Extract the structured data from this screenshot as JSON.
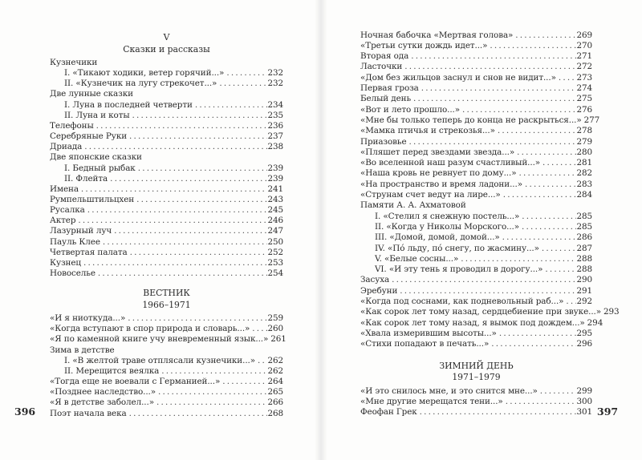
{
  "left_page": {
    "page_number": "396",
    "blocks": [
      {
        "type": "section",
        "lines": [
          "V",
          "Сказки и рассказы"
        ]
      },
      {
        "type": "entries",
        "items": [
          {
            "title": "Кузнечики",
            "page": "",
            "level": 0
          },
          {
            "title": "I. «Тикают ходики, ветер горячий...»",
            "page": "232",
            "level": 1
          },
          {
            "title": "II. «Кузнечик на лугу стрекочет...»",
            "page": "232",
            "level": 1
          },
          {
            "title": "Две лунные сказки",
            "page": "",
            "level": 0
          },
          {
            "title": "I. Луна в последней четверти",
            "page": "234",
            "level": 1
          },
          {
            "title": "II. Луна и коты",
            "page": "235",
            "level": 1
          },
          {
            "title": "Телефоны",
            "page": "236",
            "level": 0
          },
          {
            "title": "Серебряные Руки",
            "page": "237",
            "level": 0
          },
          {
            "title": "Дриада",
            "page": "238",
            "level": 0
          },
          {
            "title": "Две японские сказки",
            "page": "",
            "level": 0
          },
          {
            "title": "I. Бедный рыбак",
            "page": "239",
            "level": 1
          },
          {
            "title": "II. Флейта",
            "page": "239",
            "level": 1
          },
          {
            "title": "Имена",
            "page": "241",
            "level": 0
          },
          {
            "title": "Румпельштильцхен",
            "page": "243",
            "level": 0
          },
          {
            "title": "Русалка",
            "page": "245",
            "level": 0
          },
          {
            "title": "Актер",
            "page": "246",
            "level": 0
          },
          {
            "title": "Лазурный луч",
            "page": "247",
            "level": 0
          },
          {
            "title": "Пауль Клее",
            "page": "250",
            "level": 0
          },
          {
            "title": "Четвертая палата",
            "page": "252",
            "level": 0
          },
          {
            "title": "Кузнец",
            "page": "253",
            "level": 0
          },
          {
            "title": "Новоселье",
            "page": "254",
            "level": 0
          }
        ]
      },
      {
        "type": "section",
        "lines": [
          "ВЕСТНИК",
          "1966–1971"
        ]
      },
      {
        "type": "entries",
        "items": [
          {
            "title": "«И я ниоткуда...»",
            "page": "259",
            "level": 0
          },
          {
            "title": "«Когда вступают в спор природа и словарь...»",
            "page": "260",
            "level": 0
          },
          {
            "title": "«Я по каменной книге учу вневременный язык...»",
            "page": "261",
            "level": 0
          },
          {
            "title": "Зима в детстве",
            "page": "",
            "level": 0
          },
          {
            "title": "I. «В желтой траве отплясали кузнечики...»",
            "page": "262",
            "level": 1
          },
          {
            "title": "II. Мерещится веялка",
            "page": "262",
            "level": 1
          },
          {
            "title": "«Тогда еще не воевали с Германией...»",
            "page": "264",
            "level": 0
          },
          {
            "title": "«Позднее наследство...»",
            "page": "265",
            "level": 0
          },
          {
            "title": "«Я в детстве заболел...»",
            "page": "266",
            "level": 0
          },
          {
            "title": "Поэт начала века",
            "page": "268",
            "level": 0
          }
        ]
      }
    ]
  },
  "right_page": {
    "page_number": "397",
    "blocks": [
      {
        "type": "entries",
        "items": [
          {
            "title": "Ночная бабочка «Мертвая голова»",
            "page": "269",
            "level": 0
          },
          {
            "title": "«Третьи сутки дождь идет...»",
            "page": "270",
            "level": 0
          },
          {
            "title": "Вторая ода",
            "page": "271",
            "level": 0
          },
          {
            "title": "Ласточки",
            "page": "272",
            "level": 0
          },
          {
            "title": "«Дом без жильцов заснул и снов не видит...»",
            "page": "273",
            "level": 0
          },
          {
            "title": "Первая гроза",
            "page": "274",
            "level": 0
          },
          {
            "title": "Белый день",
            "page": "275",
            "level": 0
          },
          {
            "title": "«Вот и лето прошло...»",
            "page": "276",
            "level": 0
          },
          {
            "title": "«Мне бы только теперь до конца не раскрыться...»",
            "page": "277",
            "level": 0
          },
          {
            "title": "«Мамка птичья и стрекозья...»",
            "page": "278",
            "level": 0
          },
          {
            "title": "Приазовье",
            "page": "279",
            "level": 0
          },
          {
            "title": "«Пляшет перед звездами звезда...»",
            "page": "280",
            "level": 0
          },
          {
            "title": "«Во вселенной наш разум счастливый...»",
            "page": "281",
            "level": 0
          },
          {
            "title": "«Наша кровь не ревнует по дому...»",
            "page": "282",
            "level": 0
          },
          {
            "title": "«На пространство и время ладони...»",
            "page": "283",
            "level": 0
          },
          {
            "title": "«Струнам счет ведут на лире...»",
            "page": "284",
            "level": 0
          },
          {
            "title": "Памяти А. А. Ахматовой",
            "page": "",
            "level": 0
          },
          {
            "title": "I. «Стелил я снежную постель...»",
            "page": "285",
            "level": 1
          },
          {
            "title": "II. «Когда у Николы Морского...»",
            "page": "285",
            "level": 1
          },
          {
            "title": "III. «Домой, домой, домой...»",
            "page": "286",
            "level": 1
          },
          {
            "title": "IV. «Пó льду, пó снегу, по жасмину...»",
            "page": "287",
            "level": 1
          },
          {
            "title": "V. «Белые сосны...»",
            "page": "288",
            "level": 1
          },
          {
            "title": "VI. «И эту тень я проводил в дорогу...»",
            "page": "288",
            "level": 1
          },
          {
            "title": "Засуха",
            "page": "290",
            "level": 0
          },
          {
            "title": "Эребуни",
            "page": "291",
            "level": 0
          },
          {
            "title": "«Когда под соснами, как подневольный раб...»",
            "page": "292",
            "level": 0
          },
          {
            "title": "«Как сорок лет тому назад, сердцебиение при звуке...»",
            "page": "293",
            "level": 0
          },
          {
            "title": "«Как сорок лет тому назад, я вымок под дождем...»",
            "page": "294",
            "level": 0
          },
          {
            "title": "«Хвала измерившим высоты...»",
            "page": "295",
            "level": 0
          },
          {
            "title": "«Стихи попадают в печать...»",
            "page": "296",
            "level": 0
          }
        ]
      },
      {
        "type": "section",
        "lines": [
          "ЗИМНИЙ ДЕНЬ",
          "1971–1979"
        ]
      },
      {
        "type": "entries",
        "items": [
          {
            "title": "«И это снилось мне, и это снится мне...»",
            "page": "299",
            "level": 0
          },
          {
            "title": "«Мне другие мерещатся тени...»",
            "page": "300",
            "level": 0
          },
          {
            "title": "Феофан Грек",
            "page": "301",
            "level": 0
          }
        ]
      }
    ]
  }
}
